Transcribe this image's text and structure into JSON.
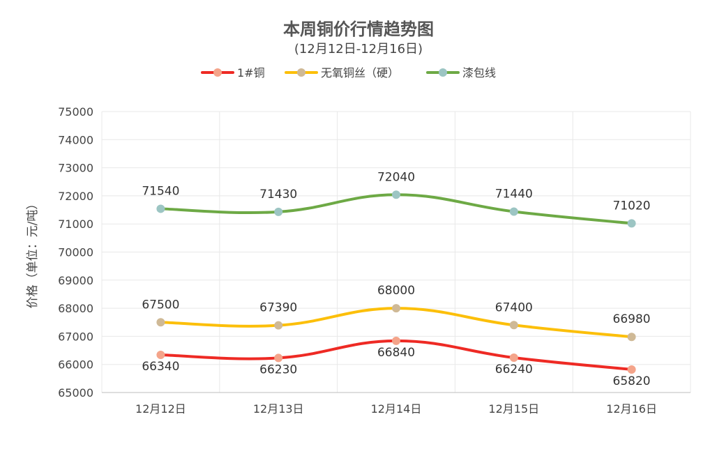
{
  "chart_data": {
    "type": "line",
    "title": "本周铜价行情趋势图",
    "subtitle": "(12月12日-12月16日)",
    "ylabel": "价格（单位：元/吨）",
    "xlabel": "",
    "categories": [
      "12月12日",
      "12月13日",
      "12月14日",
      "12月15日",
      "12月16日"
    ],
    "ylim": [
      65000,
      75000
    ],
    "yticks": [
      65000,
      66000,
      67000,
      68000,
      69000,
      70000,
      71000,
      72000,
      73000,
      74000,
      75000
    ],
    "grid": true,
    "smooth": true,
    "legend_position": "top-center",
    "series": [
      {
        "name": "1#铜",
        "values": [
          66340,
          66230,
          66840,
          66240,
          65820
        ],
        "color": "#ee2a24",
        "marker_color": "#f4a48a",
        "label_position": "below"
      },
      {
        "name": "无氧铜丝（硬）",
        "values": [
          67500,
          67390,
          68000,
          67400,
          66980
        ],
        "color": "#fcbf0a",
        "marker_color": "#cfb996",
        "label_position": "above"
      },
      {
        "name": "漆包线",
        "values": [
          71540,
          71430,
          72040,
          71440,
          71020
        ],
        "color": "#6da945",
        "marker_color": "#9cc5c3",
        "label_position": "above"
      }
    ]
  }
}
